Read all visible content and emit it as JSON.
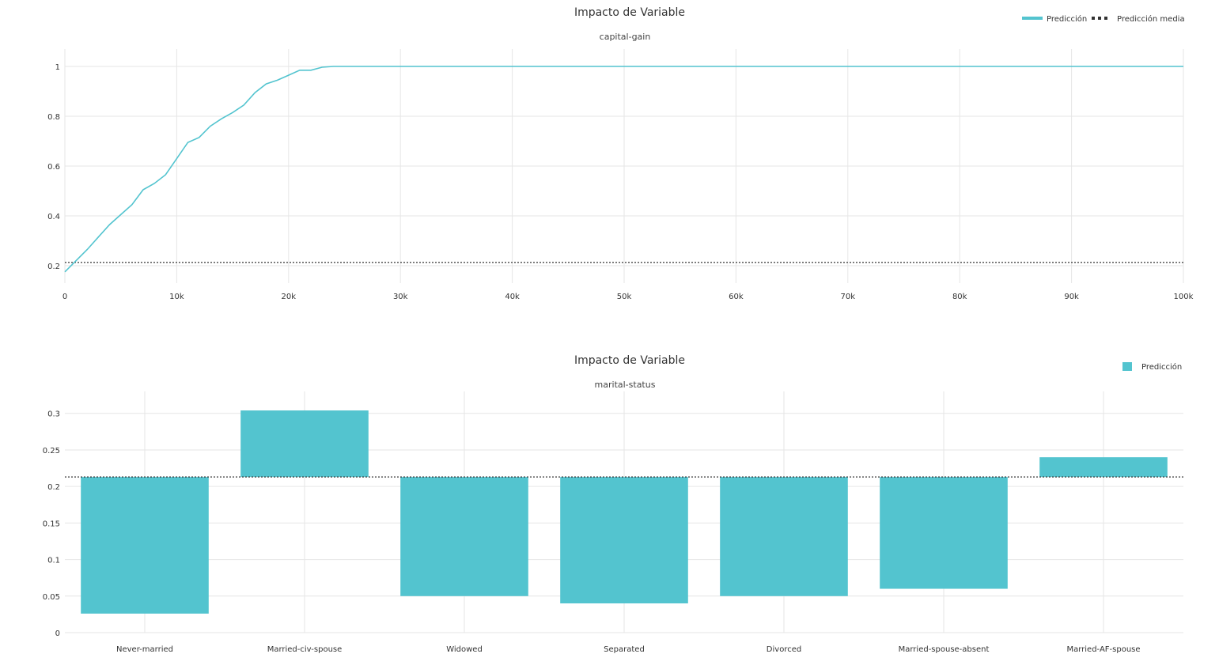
{
  "colors": {
    "accent": "#53c4cf",
    "mean_line": "#333333",
    "grid": "#e6e6e6"
  },
  "chart_data": [
    {
      "type": "line",
      "title": "Impacto de Variable",
      "subtitle": "capital-gain",
      "legend": {
        "position": "top-right",
        "entries": [
          "Predicción",
          "Predicción media"
        ]
      },
      "x_ticks": [
        "0",
        "10k",
        "20k",
        "30k",
        "40k",
        "50k",
        "60k",
        "70k",
        "80k",
        "90k",
        "100k"
      ],
      "y_ticks": [
        "0.2",
        "0.4",
        "0.6",
        "0.8",
        "1"
      ],
      "xlim": [
        0,
        100000
      ],
      "ylim": [
        0.13,
        1.07
      ],
      "grid": true,
      "mean": 0.213,
      "series": [
        {
          "name": "Predicción",
          "x": [
            0,
            1000,
            2000,
            3000,
            4000,
            5000,
            6000,
            7000,
            8000,
            9000,
            10000,
            11000,
            12000,
            13000,
            14000,
            15000,
            16000,
            17000,
            18000,
            19000,
            20000,
            21000,
            22000,
            23000,
            24000,
            25000,
            30000,
            40000,
            50000,
            60000,
            70000,
            80000,
            90000,
            100000
          ],
          "y": [
            0.175,
            0.22,
            0.265,
            0.315,
            0.365,
            0.405,
            0.445,
            0.505,
            0.53,
            0.565,
            0.63,
            0.695,
            0.715,
            0.76,
            0.79,
            0.815,
            0.845,
            0.895,
            0.93,
            0.945,
            0.965,
            0.985,
            0.985,
            0.997,
            1.0,
            1.0,
            1.0,
            1.0,
            1.0,
            1.0,
            1.0,
            1.0,
            1.0,
            1.0
          ]
        }
      ]
    },
    {
      "type": "bar",
      "title": "Impacto de Variable",
      "subtitle": "marital-status",
      "legend": {
        "position": "top-right",
        "entries": [
          "Predicción"
        ]
      },
      "categories": [
        "Never-married",
        "Married-civ-spouse",
        "Widowed",
        "Separated",
        "Divorced",
        "Married-spouse-absent",
        "Married-AF-spouse"
      ],
      "values": [
        0.026,
        0.304,
        0.05,
        0.04,
        0.05,
        0.06,
        0.24
      ],
      "baseline": 0.213,
      "y_ticks": [
        "0",
        "0.05",
        "0.1",
        "0.15",
        "0.2",
        "0.25",
        "0.3"
      ],
      "ylim": [
        0,
        0.33
      ],
      "grid": true
    }
  ]
}
